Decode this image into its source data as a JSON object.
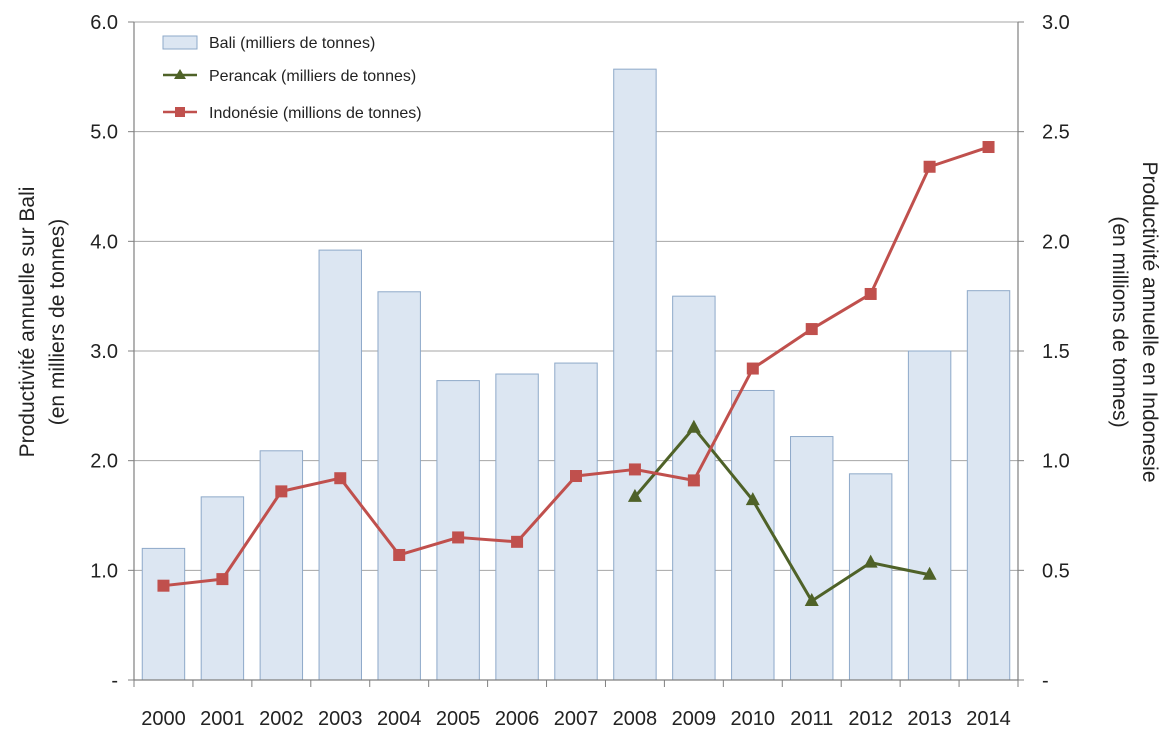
{
  "chart_data": {
    "type": "bar",
    "categories": [
      "2000",
      "2001",
      "2002",
      "2003",
      "2004",
      "2005",
      "2006",
      "2007",
      "2008",
      "2009",
      "2010",
      "2011",
      "2012",
      "2013",
      "2014"
    ],
    "title": "",
    "ylabel_left_line1": "Productivité annuelle sur Bali",
    "ylabel_left_line2": "(en milliers de tonnes)",
    "ylabel_right_line1": "Productivité annuelle en Indonesie",
    "ylabel_right_line2": "(en millions de tonnes)",
    "ylim_left": [
      0,
      6
    ],
    "ylim_right": [
      0,
      3
    ],
    "y_left_ticks": [
      {
        "value": 0,
        "label": "-"
      },
      {
        "value": 1,
        "label": "1.0"
      },
      {
        "value": 2,
        "label": "2.0"
      },
      {
        "value": 3,
        "label": "3.0"
      },
      {
        "value": 4,
        "label": "4.0"
      },
      {
        "value": 5,
        "label": "5.0"
      },
      {
        "value": 6,
        "label": "6.0"
      }
    ],
    "y_right_ticks": [
      {
        "value": 0,
        "label": "-"
      },
      {
        "value": 0.5,
        "label": "0.5"
      },
      {
        "value": 1,
        "label": "1.0"
      },
      {
        "value": 1.5,
        "label": "1.5"
      },
      {
        "value": 2,
        "label": "2.0"
      },
      {
        "value": 2.5,
        "label": "2.5"
      },
      {
        "value": 3,
        "label": "3.0"
      }
    ],
    "grid": true,
    "legend_position": "top-left",
    "series": [
      {
        "name": "Bali (milliers de tonnes)",
        "type": "bar",
        "axis": "left",
        "color": "#dce6f2",
        "stroke": "#8ea9c9",
        "values": [
          1.2,
          1.67,
          2.09,
          3.92,
          3.54,
          2.73,
          2.79,
          2.89,
          5.57,
          3.5,
          2.64,
          2.22,
          1.88,
          3.0,
          3.55
        ]
      },
      {
        "name": "Perancak (milliers de tonnes)",
        "type": "line",
        "marker": "triangle",
        "axis": "left",
        "color": "#4f6228",
        "values": [
          null,
          null,
          null,
          null,
          null,
          null,
          null,
          null,
          1.67,
          2.3,
          1.64,
          0.72,
          1.07,
          0.96,
          null
        ]
      },
      {
        "name": "Indonésie (millions de tonnes)",
        "type": "line",
        "marker": "square",
        "axis": "right",
        "color": "#c0504d",
        "values": [
          0.43,
          0.46,
          0.86,
          0.92,
          0.57,
          0.65,
          0.63,
          0.93,
          0.96,
          0.91,
          1.42,
          1.6,
          1.76,
          2.34,
          2.43
        ]
      }
    ]
  }
}
